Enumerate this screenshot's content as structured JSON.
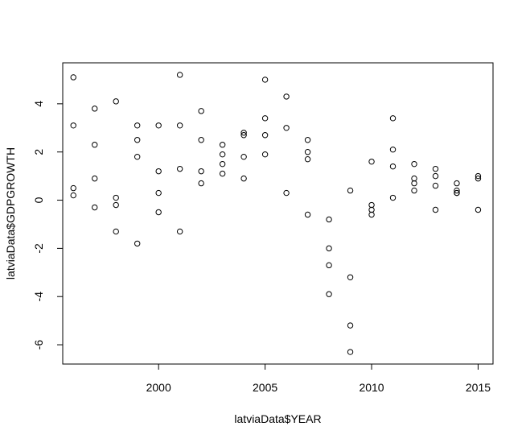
{
  "chart_data": {
    "type": "scatter",
    "title": "",
    "xlabel": "latviaData$YEAR",
    "ylabel": "latviaData$GDPGROWTH",
    "xlim": [
      1995.5,
      2015.7
    ],
    "ylim": [
      -6.8,
      5.7
    ],
    "x_ticks": [
      2000,
      2005,
      2010,
      2015
    ],
    "y_ticks": [
      -6,
      -4,
      -2,
      0,
      2,
      4
    ],
    "grid": false,
    "legend": "none",
    "marker": "open-circle",
    "colors": {
      "point": "#000000",
      "axis": "#000000",
      "background": "#ffffff"
    },
    "points": [
      {
        "x": 1996,
        "y": 5.1
      },
      {
        "x": 1996,
        "y": 3.1
      },
      {
        "x": 1996,
        "y": 0.5
      },
      {
        "x": 1996,
        "y": 0.2
      },
      {
        "x": 1997,
        "y": 3.8
      },
      {
        "x": 1997,
        "y": 2.3
      },
      {
        "x": 1997,
        "y": 0.9
      },
      {
        "x": 1997,
        "y": -0.3
      },
      {
        "x": 1998,
        "y": 4.1
      },
      {
        "x": 1998,
        "y": 0.1
      },
      {
        "x": 1998,
        "y": -0.2
      },
      {
        "x": 1998,
        "y": -1.3
      },
      {
        "x": 1999,
        "y": 3.1
      },
      {
        "x": 1999,
        "y": 2.5
      },
      {
        "x": 1999,
        "y": 1.8
      },
      {
        "x": 1999,
        "y": -1.8
      },
      {
        "x": 2000,
        "y": 3.1
      },
      {
        "x": 2000,
        "y": 1.2
      },
      {
        "x": 2000,
        "y": 0.3
      },
      {
        "x": 2000,
        "y": -0.5
      },
      {
        "x": 2001,
        "y": 5.2
      },
      {
        "x": 2001,
        "y": 3.1
      },
      {
        "x": 2001,
        "y": 1.3
      },
      {
        "x": 2001,
        "y": -1.3
      },
      {
        "x": 2002,
        "y": 3.7
      },
      {
        "x": 2002,
        "y": 2.5
      },
      {
        "x": 2002,
        "y": 1.2
      },
      {
        "x": 2002,
        "y": 0.7
      },
      {
        "x": 2003,
        "y": 2.3
      },
      {
        "x": 2003,
        "y": 1.9
      },
      {
        "x": 2003,
        "y": 1.5
      },
      {
        "x": 2003,
        "y": 1.1
      },
      {
        "x": 2004,
        "y": 2.8
      },
      {
        "x": 2004,
        "y": 2.7
      },
      {
        "x": 2004,
        "y": 1.8
      },
      {
        "x": 2004,
        "y": 0.9
      },
      {
        "x": 2005,
        "y": 5.0
      },
      {
        "x": 2005,
        "y": 3.4
      },
      {
        "x": 2005,
        "y": 2.7
      },
      {
        "x": 2005,
        "y": 1.9
      },
      {
        "x": 2006,
        "y": 4.3
      },
      {
        "x": 2006,
        "y": 3.0
      },
      {
        "x": 2006,
        "y": 0.3
      },
      {
        "x": 2007,
        "y": 2.5
      },
      {
        "x": 2007,
        "y": 2.0
      },
      {
        "x": 2007,
        "y": 1.7
      },
      {
        "x": 2007,
        "y": -0.6
      },
      {
        "x": 2008,
        "y": -0.8
      },
      {
        "x": 2008,
        "y": -2.0
      },
      {
        "x": 2008,
        "y": -2.7
      },
      {
        "x": 2008,
        "y": -3.9
      },
      {
        "x": 2009,
        "y": 0.4
      },
      {
        "x": 2009,
        "y": -3.2
      },
      {
        "x": 2009,
        "y": -5.2
      },
      {
        "x": 2009,
        "y": -6.3
      },
      {
        "x": 2010,
        "y": 1.6
      },
      {
        "x": 2010,
        "y": -0.2
      },
      {
        "x": 2010,
        "y": -0.4
      },
      {
        "x": 2010,
        "y": -0.6
      },
      {
        "x": 2011,
        "y": 3.4
      },
      {
        "x": 2011,
        "y": 2.1
      },
      {
        "x": 2011,
        "y": 1.4
      },
      {
        "x": 2011,
        "y": 0.1
      },
      {
        "x": 2012,
        "y": 1.5
      },
      {
        "x": 2012,
        "y": 0.9
      },
      {
        "x": 2012,
        "y": 0.7
      },
      {
        "x": 2012,
        "y": 0.4
      },
      {
        "x": 2013,
        "y": 1.3
      },
      {
        "x": 2013,
        "y": 1.0
      },
      {
        "x": 2013,
        "y": 0.6
      },
      {
        "x": 2013,
        "y": -0.4
      },
      {
        "x": 2014,
        "y": 0.7
      },
      {
        "x": 2014,
        "y": 0.4
      },
      {
        "x": 2014,
        "y": 0.3
      },
      {
        "x": 2014,
        "y": 0.3
      },
      {
        "x": 2015,
        "y": 1.0
      },
      {
        "x": 2015,
        "y": 0.9
      },
      {
        "x": 2015,
        "y": -0.4
      }
    ]
  }
}
